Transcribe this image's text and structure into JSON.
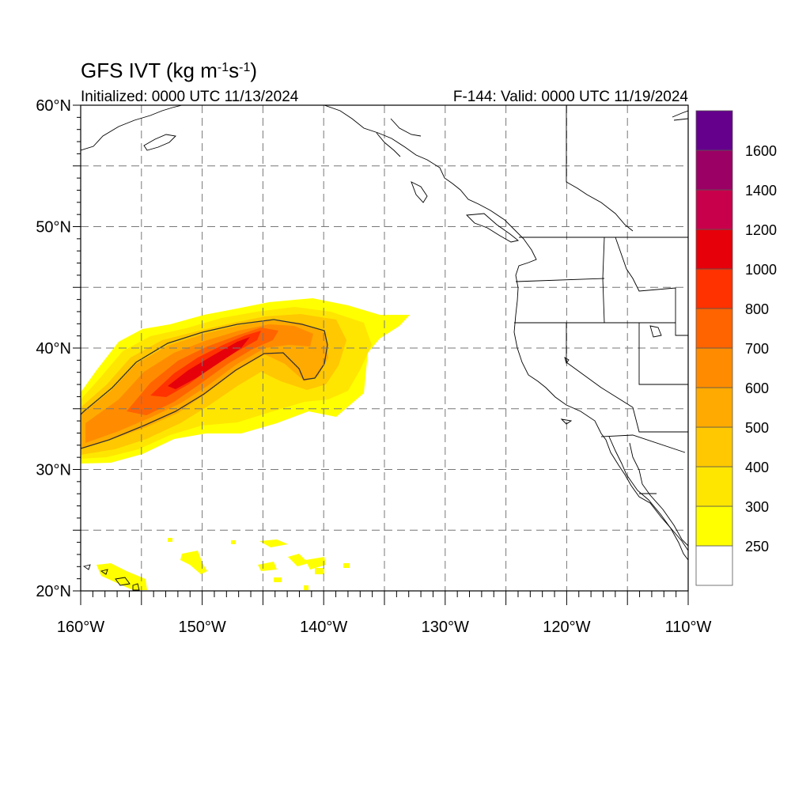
{
  "title": {
    "main": "GFS IVT",
    "units": "(kg m-1s-1)",
    "initialized": "Initialized: 0000 UTC 11/13/2024",
    "valid": "F-144: Valid: 0000 UTC 11/19/2024"
  },
  "map": {
    "lon_range": [
      -160,
      -110
    ],
    "lat_range": [
      20,
      60
    ],
    "lat_labels": [
      "20°N",
      "30°N",
      "40°N",
      "50°N",
      "60°N"
    ],
    "lon_labels": [
      "160°W",
      "150°W",
      "140°W",
      "130°W",
      "120°W",
      "110°W"
    ],
    "grid_lats": [
      25,
      30,
      35,
      40,
      45,
      50,
      55
    ],
    "grid_lons": [
      -155,
      -150,
      -145,
      -140,
      -135,
      -130,
      -125,
      -120,
      -115
    ],
    "contour_threshold": 500
  },
  "colorbar": {
    "labels": [
      "250",
      "300",
      "400",
      "500",
      "600",
      "700",
      "800",
      "1000",
      "1200",
      "1400",
      "1600"
    ],
    "colors": [
      "#ffffff",
      "#ffff00",
      "#ffe600",
      "#ffc800",
      "#ffaa00",
      "#ff8c00",
      "#ff6400",
      "#ff3200",
      "#e6000a",
      "#c8004b",
      "#9b0064",
      "#64008c"
    ]
  },
  "chart_data": {
    "type": "heatmap",
    "title": "GFS IVT",
    "xlabel": "",
    "ylabel": "",
    "xlim": [
      -160,
      -110
    ],
    "ylim": [
      20,
      60
    ],
    "units": "kg m-1 s-1",
    "description_values": "IVT atmospheric river core",
    "max_value": 1000
  }
}
